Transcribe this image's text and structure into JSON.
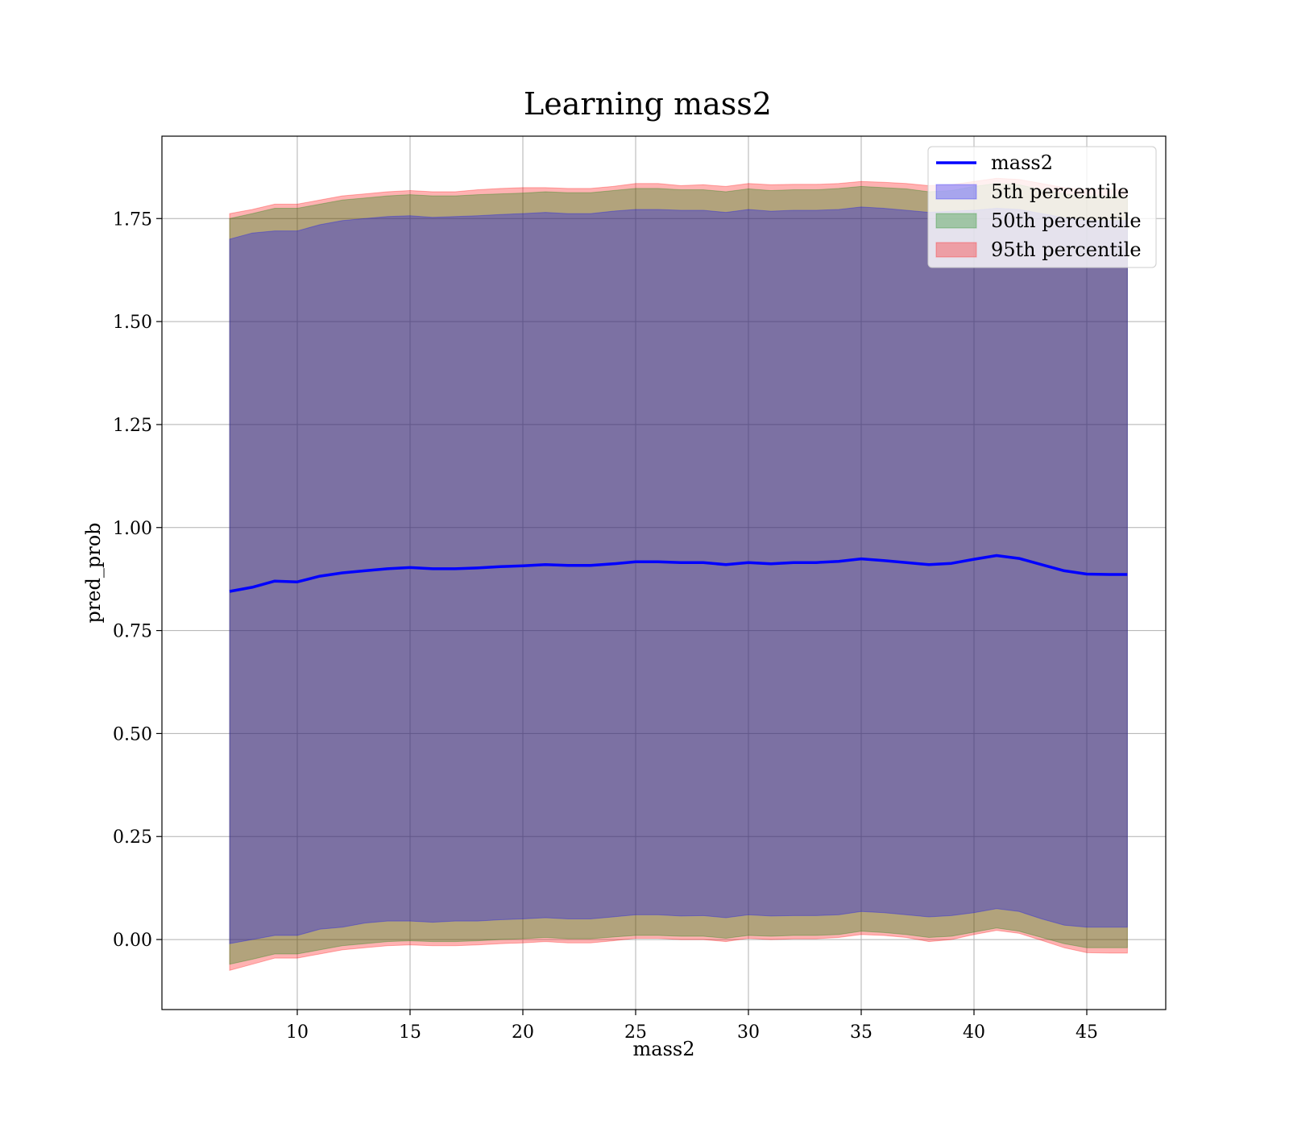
{
  "chart_data": {
    "type": "line",
    "title": "Learning mass2",
    "xlabel": "mass2",
    "ylabel": "pred_prob",
    "xlim": [
      4,
      48.5
    ],
    "ylim": [
      -0.17,
      1.95
    ],
    "xticks": [
      10,
      15,
      20,
      25,
      30,
      35,
      40,
      45
    ],
    "yticks": [
      0.0,
      0.25,
      0.5,
      0.75,
      1.0,
      1.25,
      1.5,
      1.75
    ],
    "ytick_labels": [
      "0.00",
      "0.25",
      "0.50",
      "0.75",
      "1.00",
      "1.25",
      "1.50",
      "1.75"
    ],
    "grid": true,
    "legend_position": "top-right",
    "legend": [
      {
        "label": "mass2",
        "kind": "line",
        "color": "#0000ff"
      },
      {
        "label": "5th percentile",
        "kind": "patch",
        "color": "#0000ff"
      },
      {
        "label": "50th percentile",
        "kind": "patch",
        "color": "#008000"
      },
      {
        "label": "95th percentile",
        "kind": "patch",
        "color": "#ff0000"
      }
    ],
    "x": [
      7.0,
      8.0,
      9.0,
      10.0,
      11.0,
      12.0,
      13.0,
      14.0,
      15.0,
      16.0,
      17.0,
      18.0,
      19.0,
      20.0,
      21.0,
      22.0,
      23.0,
      24.0,
      25.0,
      26.0,
      27.0,
      28.0,
      29.0,
      30.0,
      31.0,
      32.0,
      33.0,
      34.0,
      35.0,
      36.0,
      37.0,
      38.0,
      39.0,
      40.0,
      41.0,
      42.0,
      43.0,
      44.0,
      45.0,
      46.0,
      46.8
    ],
    "series": [
      {
        "name": "mass2",
        "color": "#0000ff",
        "values": [
          0.845,
          0.855,
          0.87,
          0.868,
          0.882,
          0.89,
          0.895,
          0.9,
          0.903,
          0.9,
          0.9,
          0.902,
          0.905,
          0.907,
          0.91,
          0.908,
          0.908,
          0.912,
          0.917,
          0.917,
          0.915,
          0.915,
          0.91,
          0.915,
          0.912,
          0.915,
          0.915,
          0.918,
          0.924,
          0.92,
          0.915,
          0.91,
          0.913,
          0.923,
          0.932,
          0.925,
          0.91,
          0.895,
          0.887,
          0.886,
          0.886
        ]
      }
    ],
    "bands": [
      {
        "name": "95th percentile",
        "color": "#ff0000",
        "upper": [
          1.762,
          1.772,
          1.785,
          1.785,
          1.795,
          1.805,
          1.81,
          1.815,
          1.818,
          1.815,
          1.815,
          1.82,
          1.823,
          1.825,
          1.825,
          1.823,
          1.823,
          1.828,
          1.835,
          1.835,
          1.83,
          1.832,
          1.828,
          1.835,
          1.832,
          1.833,
          1.833,
          1.835,
          1.84,
          1.838,
          1.835,
          1.83,
          1.832,
          1.84,
          1.848,
          1.845,
          1.835,
          1.825,
          1.82,
          1.82,
          1.82
        ],
        "lower": [
          -0.075,
          -0.06,
          -0.045,
          -0.045,
          -0.035,
          -0.025,
          -0.02,
          -0.015,
          -0.013,
          -0.015,
          -0.015,
          -0.013,
          -0.01,
          -0.008,
          -0.005,
          -0.008,
          -0.008,
          -0.003,
          0.003,
          0.003,
          0.0,
          0.0,
          -0.005,
          0.003,
          0.0,
          0.002,
          0.002,
          0.005,
          0.012,
          0.01,
          0.005,
          -0.005,
          0.0,
          0.012,
          0.022,
          0.015,
          -0.002,
          -0.02,
          -0.032,
          -0.033,
          -0.033
        ]
      },
      {
        "name": "50th percentile",
        "color": "#008000",
        "upper": [
          1.75,
          1.762,
          1.775,
          1.775,
          1.785,
          1.795,
          1.8,
          1.805,
          1.808,
          1.805,
          1.805,
          1.808,
          1.81,
          1.812,
          1.815,
          1.813,
          1.813,
          1.818,
          1.823,
          1.823,
          1.82,
          1.82,
          1.815,
          1.822,
          1.818,
          1.82,
          1.82,
          1.823,
          1.828,
          1.825,
          1.822,
          1.815,
          1.818,
          1.828,
          1.835,
          1.832,
          1.82,
          1.81,
          1.805,
          1.805,
          1.805
        ],
        "lower": [
          -0.06,
          -0.048,
          -0.035,
          -0.035,
          -0.025,
          -0.015,
          -0.01,
          -0.005,
          -0.003,
          -0.005,
          -0.005,
          -0.003,
          0.0,
          0.002,
          0.005,
          0.002,
          0.002,
          0.006,
          0.01,
          0.01,
          0.008,
          0.008,
          0.003,
          0.01,
          0.008,
          0.01,
          0.01,
          0.012,
          0.02,
          0.017,
          0.012,
          0.005,
          0.008,
          0.018,
          0.028,
          0.02,
          0.005,
          -0.01,
          -0.02,
          -0.02,
          -0.02
        ]
      },
      {
        "name": "5th percentile",
        "color": "#0000ff",
        "upper": [
          1.7,
          1.715,
          1.72,
          1.72,
          1.735,
          1.745,
          1.75,
          1.755,
          1.757,
          1.753,
          1.755,
          1.757,
          1.76,
          1.762,
          1.765,
          1.762,
          1.762,
          1.768,
          1.772,
          1.772,
          1.77,
          1.77,
          1.765,
          1.772,
          1.768,
          1.77,
          1.77,
          1.772,
          1.778,
          1.775,
          1.77,
          1.765,
          1.768,
          1.77,
          1.775,
          1.772,
          1.762,
          1.752,
          1.745,
          1.745,
          1.745
        ],
        "lower": [
          -0.01,
          0.0,
          0.01,
          0.01,
          0.025,
          0.03,
          0.04,
          0.045,
          0.045,
          0.042,
          0.045,
          0.045,
          0.048,
          0.05,
          0.053,
          0.05,
          0.05,
          0.055,
          0.06,
          0.06,
          0.057,
          0.058,
          0.053,
          0.06,
          0.057,
          0.058,
          0.058,
          0.06,
          0.068,
          0.065,
          0.06,
          0.055,
          0.058,
          0.065,
          0.075,
          0.068,
          0.05,
          0.035,
          0.03,
          0.03,
          0.03
        ]
      }
    ]
  }
}
